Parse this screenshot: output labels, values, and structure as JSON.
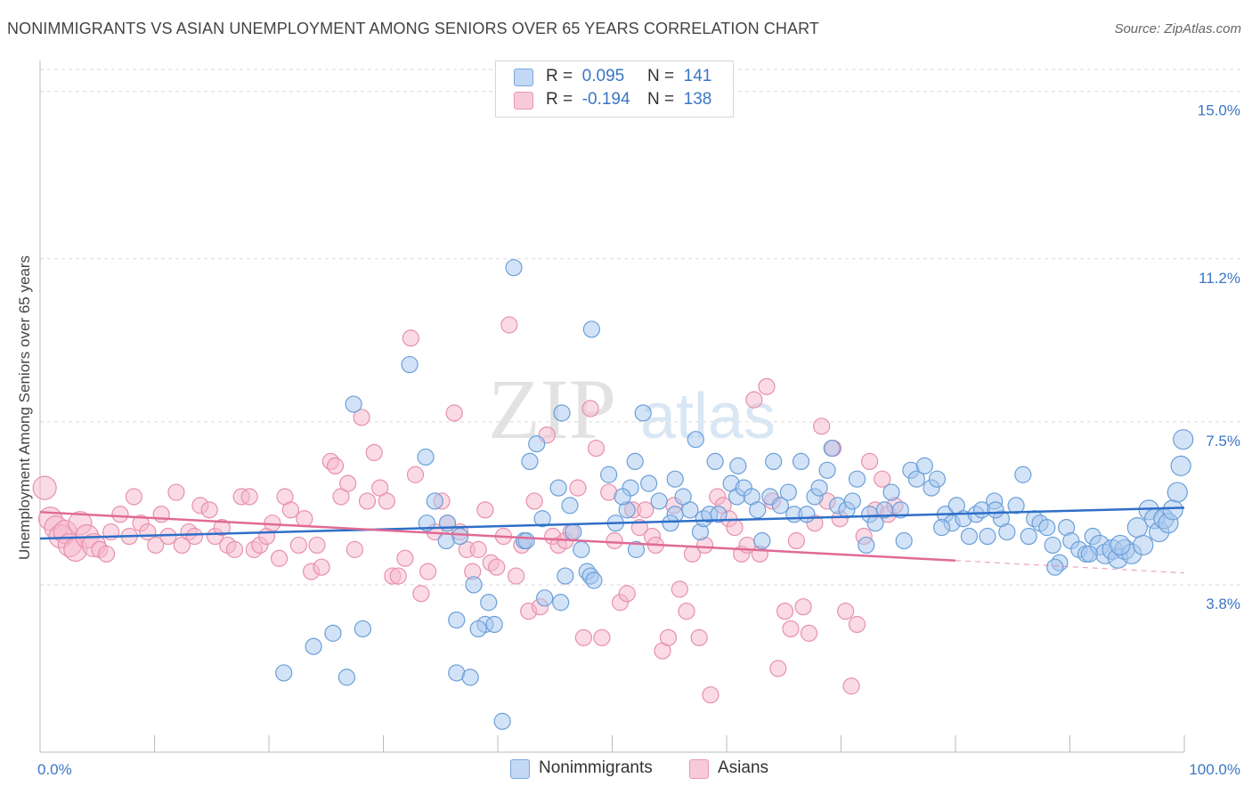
{
  "title": "NONIMMIGRANTS VS ASIAN UNEMPLOYMENT AMONG SENIORS OVER 65 YEARS CORRELATION CHART",
  "source": "Source: ZipAtlas.com",
  "watermark": {
    "zip": "ZIP",
    "atlas": "atlas"
  },
  "legend_top": [
    {
      "r_label": "R =",
      "r_value": "0.095",
      "n_label": "N =",
      "n_value": "141",
      "color": "#a8c8f0"
    },
    {
      "r_label": "R =",
      "r_value": "-0.194",
      "n_label": "N =",
      "n_value": "138",
      "color": "#f5b8cc"
    }
  ],
  "legend_bottom": [
    "Nonimmigrants",
    "Asians"
  ],
  "colors": {
    "blue_fill": "#a8c8f0",
    "blue_stroke": "#6a9fd8",
    "blue_line": "#2e6fc8",
    "pink_fill": "#f5b8cc",
    "pink_stroke": "#e890ab",
    "pink_line": "#e06a96",
    "tick_label": "#3a76c4",
    "grid": "#d9d9d9"
  },
  "chart_data": {
    "type": "scatter",
    "title": "NONIMMIGRANTS VS ASIAN UNEMPLOYMENT AMONG SENIORS OVER 65 YEARS CORRELATION CHART",
    "xlabel": "",
    "ylabel": "Unemployment Among Seniors over 65 years",
    "xlim": [
      0,
      100
    ],
    "ylim": [
      0,
      15.5
    ],
    "x_tick_labels": [
      "0.0%",
      "100.0%"
    ],
    "y_ticks": [
      3.8,
      7.5,
      11.2,
      15.0
    ],
    "y_tick_labels": [
      "3.8%",
      "7.5%",
      "11.2%",
      "15.0%"
    ],
    "grid": true,
    "legend": "top-center",
    "series": [
      {
        "name": "Nonimmigrants",
        "r": 0.095,
        "n": 141,
        "trend": {
          "x": [
            0,
            100
          ],
          "y": [
            4.85,
            5.55
          ]
        },
        "points": [
          [
            21.3,
            1.8
          ],
          [
            23.9,
            2.4
          ],
          [
            25.6,
            2.7
          ],
          [
            26.8,
            1.7
          ],
          [
            28.2,
            2.8
          ],
          [
            27.4,
            7.9
          ],
          [
            32.3,
            8.8
          ],
          [
            33.7,
            6.7
          ],
          [
            34.5,
            5.7
          ],
          [
            33.8,
            5.2
          ],
          [
            35.6,
            5.2
          ],
          [
            36.7,
            4.9
          ],
          [
            35.5,
            4.8
          ],
          [
            36.4,
            1.8
          ],
          [
            37.6,
            1.7
          ],
          [
            36.4,
            3.0
          ],
          [
            37.9,
            3.8
          ],
          [
            39.2,
            3.4
          ],
          [
            38.9,
            2.9
          ],
          [
            39.7,
            2.9
          ],
          [
            38.3,
            2.8
          ],
          [
            40.4,
            0.7
          ],
          [
            41.4,
            11.0
          ],
          [
            42.3,
            4.8
          ],
          [
            42.8,
            6.6
          ],
          [
            43.4,
            7.0
          ],
          [
            43.9,
            5.3
          ],
          [
            44.1,
            3.5
          ],
          [
            45.5,
            3.4
          ],
          [
            45.9,
            4.0
          ],
          [
            46.3,
            5.6
          ],
          [
            45.3,
            6.0
          ],
          [
            45.6,
            7.7
          ],
          [
            46.6,
            5.0
          ],
          [
            47.3,
            4.6
          ],
          [
            47.8,
            4.1
          ],
          [
            48.1,
            4.0
          ],
          [
            48.2,
            9.6
          ],
          [
            48.4,
            3.9
          ],
          [
            49.7,
            6.3
          ],
          [
            50.3,
            5.2
          ],
          [
            51.3,
            5.5
          ],
          [
            51.6,
            6.0
          ],
          [
            50.9,
            5.8
          ],
          [
            52.0,
            6.6
          ],
          [
            52.7,
            7.7
          ],
          [
            52.1,
            4.6
          ],
          [
            53.2,
            6.1
          ],
          [
            54.1,
            5.7
          ],
          [
            55.5,
            5.4
          ],
          [
            55.1,
            5.2
          ],
          [
            55.5,
            6.2
          ],
          [
            56.8,
            5.5
          ],
          [
            56.2,
            5.8
          ],
          [
            57.7,
            5.0
          ],
          [
            57.3,
            7.1
          ],
          [
            58.0,
            5.3
          ],
          [
            58.5,
            5.4
          ],
          [
            59.0,
            6.6
          ],
          [
            59.3,
            5.4
          ],
          [
            60.4,
            6.1
          ],
          [
            60.9,
            5.8
          ],
          [
            61.0,
            6.5
          ],
          [
            61.5,
            6.0
          ],
          [
            62.2,
            5.8
          ],
          [
            62.7,
            5.5
          ],
          [
            63.1,
            4.8
          ],
          [
            63.8,
            5.8
          ],
          [
            64.1,
            6.6
          ],
          [
            64.7,
            5.6
          ],
          [
            65.4,
            5.9
          ],
          [
            65.9,
            5.4
          ],
          [
            66.5,
            6.6
          ],
          [
            67.0,
            5.4
          ],
          [
            67.7,
            5.8
          ],
          [
            68.1,
            6.0
          ],
          [
            68.8,
            6.4
          ],
          [
            69.2,
            6.9
          ],
          [
            69.7,
            5.6
          ],
          [
            70.5,
            5.5
          ],
          [
            71.0,
            5.7
          ],
          [
            71.4,
            6.2
          ],
          [
            72.2,
            4.7
          ],
          [
            72.5,
            5.4
          ],
          [
            73.0,
            5.2
          ],
          [
            73.8,
            5.5
          ],
          [
            74.4,
            5.9
          ],
          [
            75.2,
            5.5
          ],
          [
            75.5,
            4.8
          ],
          [
            76.1,
            6.4
          ],
          [
            76.6,
            6.2
          ],
          [
            77.3,
            6.5
          ],
          [
            77.9,
            6.0
          ],
          [
            78.4,
            6.2
          ],
          [
            79.1,
            5.4
          ],
          [
            79.7,
            5.2
          ],
          [
            80.1,
            5.6
          ],
          [
            80.7,
            5.3
          ],
          [
            81.2,
            4.9
          ],
          [
            81.8,
            5.4
          ],
          [
            82.3,
            5.5
          ],
          [
            82.8,
            4.9
          ],
          [
            83.4,
            5.7
          ],
          [
            84.0,
            5.3
          ],
          [
            84.5,
            5.0
          ],
          [
            85.3,
            5.6
          ],
          [
            85.9,
            6.3
          ],
          [
            86.4,
            4.9
          ],
          [
            86.9,
            5.3
          ],
          [
            87.4,
            5.2
          ],
          [
            88.0,
            5.1
          ],
          [
            88.5,
            4.7
          ],
          [
            89.1,
            4.3
          ],
          [
            89.7,
            5.1
          ],
          [
            90.1,
            4.8
          ],
          [
            90.8,
            4.6
          ],
          [
            91.4,
            4.5
          ],
          [
            92.0,
            4.9
          ],
          [
            92.6,
            4.7
          ],
          [
            93.1,
            4.5
          ],
          [
            93.7,
            4.6
          ],
          [
            94.2,
            4.4
          ],
          [
            94.8,
            4.6
          ],
          [
            95.4,
            4.5
          ],
          [
            95.9,
            5.1
          ],
          [
            96.4,
            4.7
          ],
          [
            96.9,
            5.5
          ],
          [
            97.4,
            5.3
          ],
          [
            97.8,
            5.0
          ],
          [
            98.2,
            5.3
          ],
          [
            98.6,
            5.2
          ],
          [
            99.0,
            5.5
          ],
          [
            99.4,
            5.9
          ],
          [
            99.7,
            6.5
          ],
          [
            99.9,
            7.1
          ],
          [
            94.4,
            4.7
          ],
          [
            91.7,
            4.5
          ],
          [
            88.7,
            4.2
          ],
          [
            83.5,
            5.5
          ],
          [
            78.8,
            5.1
          ],
          [
            42.5,
            4.8
          ]
        ]
      },
      {
        "name": "Asians",
        "r": -0.194,
        "n": 138,
        "trend": {
          "x": [
            0,
            80
          ],
          "y": [
            5.45,
            4.35
          ]
        },
        "trend_dashed": {
          "x": [
            80,
            100
          ],
          "y": [
            4.35,
            4.07
          ]
        },
        "points": [
          [
            0.4,
            6.0
          ],
          [
            0.9,
            5.3
          ],
          [
            1.4,
            5.1
          ],
          [
            1.8,
            4.9
          ],
          [
            2.2,
            5.0
          ],
          [
            2.6,
            4.7
          ],
          [
            3.1,
            4.6
          ],
          [
            3.5,
            5.2
          ],
          [
            4.1,
            4.9
          ],
          [
            4.7,
            4.7
          ],
          [
            5.2,
            4.6
          ],
          [
            5.8,
            4.5
          ],
          [
            6.2,
            5.0
          ],
          [
            7.0,
            5.4
          ],
          [
            7.8,
            4.9
          ],
          [
            8.2,
            5.8
          ],
          [
            8.8,
            5.2
          ],
          [
            9.4,
            5.0
          ],
          [
            10.1,
            4.7
          ],
          [
            10.6,
            5.4
          ],
          [
            11.2,
            4.9
          ],
          [
            11.9,
            5.9
          ],
          [
            12.4,
            4.7
          ],
          [
            13.0,
            5.0
          ],
          [
            13.5,
            4.9
          ],
          [
            14.0,
            5.6
          ],
          [
            14.8,
            5.5
          ],
          [
            15.3,
            4.9
          ],
          [
            15.9,
            5.1
          ],
          [
            16.4,
            4.7
          ],
          [
            17.0,
            4.6
          ],
          [
            17.6,
            5.8
          ],
          [
            18.3,
            5.8
          ],
          [
            18.7,
            4.6
          ],
          [
            19.2,
            4.7
          ],
          [
            19.8,
            4.9
          ],
          [
            20.3,
            5.2
          ],
          [
            20.9,
            4.4
          ],
          [
            21.4,
            5.8
          ],
          [
            21.9,
            5.5
          ],
          [
            22.6,
            4.7
          ],
          [
            23.1,
            5.3
          ],
          [
            23.7,
            4.1
          ],
          [
            24.2,
            4.7
          ],
          [
            24.6,
            4.2
          ],
          [
            25.4,
            6.6
          ],
          [
            25.8,
            6.5
          ],
          [
            26.3,
            5.8
          ],
          [
            26.9,
            6.1
          ],
          [
            27.5,
            4.6
          ],
          [
            28.1,
            7.6
          ],
          [
            28.6,
            5.7
          ],
          [
            29.2,
            6.8
          ],
          [
            29.7,
            6.0
          ],
          [
            30.3,
            5.7
          ],
          [
            30.8,
            4.0
          ],
          [
            31.3,
            4.0
          ],
          [
            31.9,
            4.4
          ],
          [
            32.4,
            9.4
          ],
          [
            32.8,
            6.3
          ],
          [
            33.3,
            3.6
          ],
          [
            33.9,
            4.1
          ],
          [
            34.5,
            5.0
          ],
          [
            35.1,
            5.7
          ],
          [
            35.6,
            5.2
          ],
          [
            36.2,
            7.7
          ],
          [
            36.7,
            5.0
          ],
          [
            37.3,
            4.6
          ],
          [
            37.8,
            4.1
          ],
          [
            38.3,
            4.6
          ],
          [
            38.9,
            5.5
          ],
          [
            39.4,
            4.3
          ],
          [
            39.9,
            4.2
          ],
          [
            40.5,
            4.9
          ],
          [
            41.0,
            9.7
          ],
          [
            41.6,
            4.0
          ],
          [
            42.1,
            4.7
          ],
          [
            42.7,
            3.2
          ],
          [
            43.2,
            5.7
          ],
          [
            43.7,
            3.3
          ],
          [
            44.3,
            7.2
          ],
          [
            44.8,
            4.9
          ],
          [
            45.3,
            4.7
          ],
          [
            45.9,
            4.8
          ],
          [
            46.4,
            5.0
          ],
          [
            47.0,
            6.0
          ],
          [
            47.5,
            2.6
          ],
          [
            48.1,
            7.8
          ],
          [
            48.6,
            6.9
          ],
          [
            49.1,
            2.6
          ],
          [
            49.7,
            5.9
          ],
          [
            50.2,
            4.8
          ],
          [
            50.7,
            3.4
          ],
          [
            51.3,
            3.6
          ],
          [
            51.8,
            5.5
          ],
          [
            52.4,
            5.1
          ],
          [
            52.9,
            5.5
          ],
          [
            53.5,
            4.9
          ],
          [
            53.8,
            4.7
          ],
          [
            54.4,
            2.3
          ],
          [
            54.9,
            2.6
          ],
          [
            55.4,
            5.6
          ],
          [
            55.9,
            3.7
          ],
          [
            56.5,
            3.2
          ],
          [
            57.0,
            4.5
          ],
          [
            57.6,
            2.6
          ],
          [
            58.1,
            4.7
          ],
          [
            58.6,
            1.3
          ],
          [
            59.2,
            5.8
          ],
          [
            59.7,
            5.6
          ],
          [
            60.2,
            5.3
          ],
          [
            60.7,
            5.1
          ],
          [
            61.3,
            4.5
          ],
          [
            61.8,
            4.7
          ],
          [
            62.4,
            8.0
          ],
          [
            62.9,
            4.5
          ],
          [
            63.5,
            8.3
          ],
          [
            64.0,
            5.7
          ],
          [
            64.5,
            1.9
          ],
          [
            65.1,
            3.2
          ],
          [
            65.6,
            2.8
          ],
          [
            66.1,
            4.8
          ],
          [
            66.7,
            3.3
          ],
          [
            67.2,
            2.7
          ],
          [
            67.7,
            5.2
          ],
          [
            68.3,
            7.4
          ],
          [
            68.8,
            5.7
          ],
          [
            69.3,
            6.9
          ],
          [
            69.9,
            5.3
          ],
          [
            70.4,
            3.2
          ],
          [
            70.9,
            1.5
          ],
          [
            71.4,
            2.9
          ],
          [
            72.0,
            4.9
          ],
          [
            72.5,
            6.6
          ],
          [
            73.0,
            5.5
          ],
          [
            73.6,
            6.2
          ],
          [
            74.1,
            5.4
          ],
          [
            74.7,
            5.6
          ]
        ]
      }
    ]
  }
}
